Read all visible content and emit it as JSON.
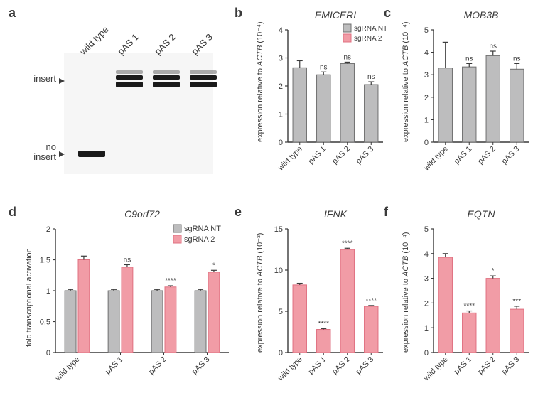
{
  "colors": {
    "gray_bar": "#bdbdbe",
    "gray_stroke": "#6f6f6f",
    "pink_bar": "#f19ca6",
    "pink_stroke": "#e07080",
    "axis": "#3a3a3a",
    "text": "#3a3a3a",
    "band_dark": "#1a1a1a",
    "band_mid": "#555555",
    "gel_bg": "#f4f4f4"
  },
  "panel_labels": {
    "a": "a",
    "b": "b",
    "c": "c",
    "d": "d",
    "e": "e",
    "f": "f"
  },
  "gel": {
    "lane_labels": [
      "wild type",
      "pAS 1",
      "pAS 2",
      "pAS 3"
    ],
    "row_labels": {
      "insert": "insert",
      "no_insert": "no\ninsert"
    }
  },
  "legend": {
    "nt": "sgRNA NT",
    "sg2": "sgRNA 2"
  },
  "chart_b": {
    "title": "EMICERI",
    "ylabel_line1": "expression relative to",
    "ylabel_line2": "ACTB",
    "ylabel_line3": "(10⁻⁴)",
    "ylim": [
      0,
      4
    ],
    "yticks": [
      0,
      1,
      2,
      3,
      4
    ],
    "categories": [
      "wild type",
      "pAS 1",
      "pAS 2",
      "pAS 3"
    ],
    "values": [
      2.65,
      2.4,
      2.8,
      2.05
    ],
    "err": [
      0.25,
      0.1,
      0.05,
      0.1
    ],
    "sig": [
      "",
      "ns",
      "ns",
      "ns"
    ],
    "bar_color": "#bdbdbe",
    "bar_stroke": "#6f6f6f"
  },
  "chart_c": {
    "title": "MOB3B",
    "ylabel_line1": "expression relative to",
    "ylabel_line2": "ACTB",
    "ylabel_line3": "(10⁻⁴)",
    "ylim": [
      0,
      5
    ],
    "yticks": [
      0,
      1,
      2,
      3,
      4,
      5
    ],
    "categories": [
      "wild type",
      "pAS 1",
      "pAS 2",
      "pAS 3"
    ],
    "values": [
      3.3,
      3.35,
      3.85,
      3.25
    ],
    "err": [
      1.15,
      0.15,
      0.2,
      0.25
    ],
    "sig": [
      "",
      "ns",
      "ns",
      "ns"
    ],
    "bar_color": "#bdbdbe",
    "bar_stroke": "#6f6f6f"
  },
  "chart_d": {
    "title": "C9orf72",
    "ylabel": "fold transcriptional activation",
    "ylim": [
      0,
      2.0
    ],
    "yticks": [
      0,
      0.5,
      1.0,
      1.5,
      2.0
    ],
    "groups": [
      "wild type",
      "pAS 1",
      "pAS 2",
      "pAS 3"
    ],
    "series": [
      {
        "name": "sgRNA NT",
        "color": "#bdbdbe",
        "stroke": "#6f6f6f",
        "values": [
          1.0,
          1.0,
          1.0,
          1.0
        ],
        "err": [
          0.02,
          0.02,
          0.02,
          0.02
        ],
        "sig": [
          "",
          "",
          "",
          ""
        ]
      },
      {
        "name": "sgRNA 2",
        "color": "#f19ca6",
        "stroke": "#e07080",
        "values": [
          1.5,
          1.38,
          1.06,
          1.3
        ],
        "err": [
          0.06,
          0.04,
          0.02,
          0.03
        ],
        "sig": [
          "",
          "ns",
          "****",
          "*"
        ]
      }
    ]
  },
  "chart_e": {
    "title": "IFNK",
    "ylabel_line1": "expression relative to",
    "ylabel_line2": "ACTB",
    "ylabel_line3": "(10⁻³)",
    "ylim": [
      0,
      15
    ],
    "yticks": [
      0,
      5,
      10,
      15
    ],
    "categories": [
      "wild type",
      "pAS 1",
      "pAS 2",
      "pAS 3"
    ],
    "values": [
      8.2,
      2.8,
      12.5,
      5.6
    ],
    "err": [
      0.2,
      0.1,
      0.15,
      0.1
    ],
    "sig": [
      "",
      "****",
      "****",
      "****"
    ],
    "bar_color": "#f19ca6",
    "bar_stroke": "#e07080"
  },
  "chart_f": {
    "title": "EQTN",
    "ylabel_line1": "expression relative to",
    "ylabel_line2": "ACTB",
    "ylabel_line3": "(10⁻⁴)",
    "ylim": [
      0,
      5
    ],
    "yticks": [
      0,
      1,
      2,
      3,
      4,
      5
    ],
    "categories": [
      "wild type",
      "pAS 1",
      "pAS 2",
      "pAS 3"
    ],
    "values": [
      3.85,
      1.6,
      3.0,
      1.75
    ],
    "err": [
      0.15,
      0.08,
      0.1,
      0.12
    ],
    "sig": [
      "",
      "****",
      "*",
      "***"
    ],
    "bar_color": "#f19ca6",
    "bar_stroke": "#e07080"
  }
}
